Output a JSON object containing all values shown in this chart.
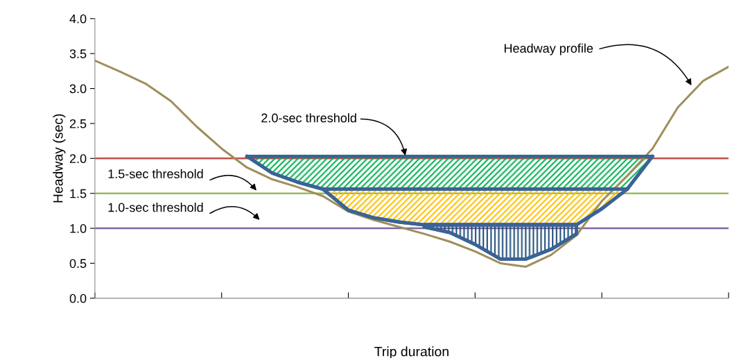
{
  "chart_data": {
    "type": "line",
    "xlabel": "Trip duration",
    "ylabel": "Headway (sec)",
    "categories": [
      null,
      null,
      null,
      null,
      null,
      null,
      null,
      null,
      null,
      null,
      null,
      null,
      null,
      null,
      null,
      null,
      null,
      null,
      null,
      null,
      null,
      null,
      null,
      null,
      null,
      null
    ],
    "ylim": [
      0,
      4
    ],
    "yticks": [
      {
        "value": 0,
        "label": "0.0"
      },
      {
        "value": 0.5,
        "label": "0.5"
      },
      {
        "value": 1,
        "label": "1.0"
      },
      {
        "value": 1.5,
        "label": "1.5"
      },
      {
        "value": 2,
        "label": "2.0"
      },
      {
        "value": 2.5,
        "label": "2.5"
      },
      {
        "value": 3,
        "label": "3.0"
      },
      {
        "value": 3.5,
        "label": "3.5"
      },
      {
        "value": 4,
        "label": "4.0"
      }
    ],
    "tick_labels": "y",
    "grid": false,
    "legend": false,
    "marker": "none",
    "series": [
      {
        "color": "#9e8f5a",
        "values": [
          3.4,
          3.24,
          3.07,
          2.82,
          2.46,
          2.14,
          1.87,
          1.7,
          1.59,
          1.46,
          1.24,
          1.12,
          1.02,
          0.92,
          0.81,
          0.67,
          0.5,
          0.45,
          0.62,
          0.9,
          1.39,
          1.75,
          2.14,
          2.73,
          3.11,
          3.31
        ]
      },
      {
        "color": "#3a6396",
        "values": [
          null,
          null,
          null,
          null,
          null,
          null,
          2.03,
          1.79,
          1.66,
          1.56,
          1.56,
          1.56,
          1.56,
          1.56,
          1.56,
          1.56,
          1.56,
          1.56,
          1.56,
          1.56,
          1.56,
          1.56,
          2.03,
          null,
          null,
          null
        ],
        "lower": [
          null,
          null,
          null,
          null,
          null,
          null,
          2.03,
          1.79,
          1.66,
          1.56,
          1.56,
          1.56,
          1.56,
          1.56,
          1.56,
          1.56,
          1.56,
          1.56,
          1.56,
          1.56,
          1.56,
          1.56,
          2.03,
          null,
          null,
          null
        ],
        "upper": [
          null,
          null,
          null,
          null,
          null,
          null,
          2.03,
          2.03,
          2.03,
          2.03,
          2.03,
          2.03,
          2.03,
          2.03,
          2.03,
          2.03,
          2.03,
          2.03,
          2.03,
          2.03,
          2.03,
          2.03,
          2.03,
          null,
          null,
          null
        ]
      },
      {
        "color": "#3a6396",
        "values": [
          null,
          null,
          null,
          null,
          null,
          null,
          null,
          null,
          null,
          1.56,
          1.26,
          1.15,
          1.09,
          1.05,
          1.05,
          1.05,
          1.05,
          1.05,
          1.05,
          1.05,
          1.28,
          1.56,
          null,
          null,
          null,
          null
        ],
        "lower": [
          null,
          null,
          null,
          null,
          null,
          null,
          null,
          null,
          null,
          1.56,
          1.26,
          1.15,
          1.09,
          1.05,
          1.05,
          1.05,
          1.05,
          1.05,
          1.05,
          1.05,
          1.28,
          1.56,
          null,
          null,
          null,
          null
        ],
        "upper": [
          null,
          null,
          null,
          null,
          null,
          null,
          null,
          null,
          null,
          1.56,
          1.56,
          1.56,
          1.56,
          1.56,
          1.56,
          1.56,
          1.56,
          1.56,
          1.56,
          1.56,
          1.56,
          1.56,
          null,
          null,
          null,
          null
        ]
      },
      {
        "color": "#3a6396",
        "values": [
          null,
          null,
          null,
          null,
          null,
          null,
          null,
          null,
          null,
          null,
          null,
          null,
          null,
          1.02,
          0.94,
          0.77,
          0.56,
          0.56,
          0.7,
          0.92,
          null,
          null,
          null,
          null,
          null,
          null
        ],
        "lower": [
          null,
          null,
          null,
          null,
          null,
          null,
          null,
          null,
          null,
          null,
          null,
          null,
          null,
          1.02,
          0.94,
          0.77,
          0.56,
          0.56,
          0.7,
          0.92,
          null,
          null,
          null,
          null,
          null,
          null
        ],
        "upper": [
          null,
          null,
          null,
          null,
          null,
          null,
          null,
          null,
          null,
          null,
          null,
          null,
          null,
          1.05,
          1.05,
          1.05,
          1.05,
          1.05,
          1.05,
          1.05,
          null,
          null,
          null,
          null,
          null,
          null
        ]
      }
    ],
    "ref_lines": [
      {
        "axis": "y",
        "value": 2.0,
        "label": "2.0-sec threshold",
        "color": "#c0504d"
      },
      {
        "axis": "y",
        "value": 1.5,
        "label": "1.5-sec threshold",
        "color": "#9bbb59"
      },
      {
        "axis": "y",
        "value": 1.0,
        "label": "1.0-sec threshold",
        "color": "#8064a2"
      }
    ],
    "annotations": [
      "Headway profile"
    ]
  }
}
